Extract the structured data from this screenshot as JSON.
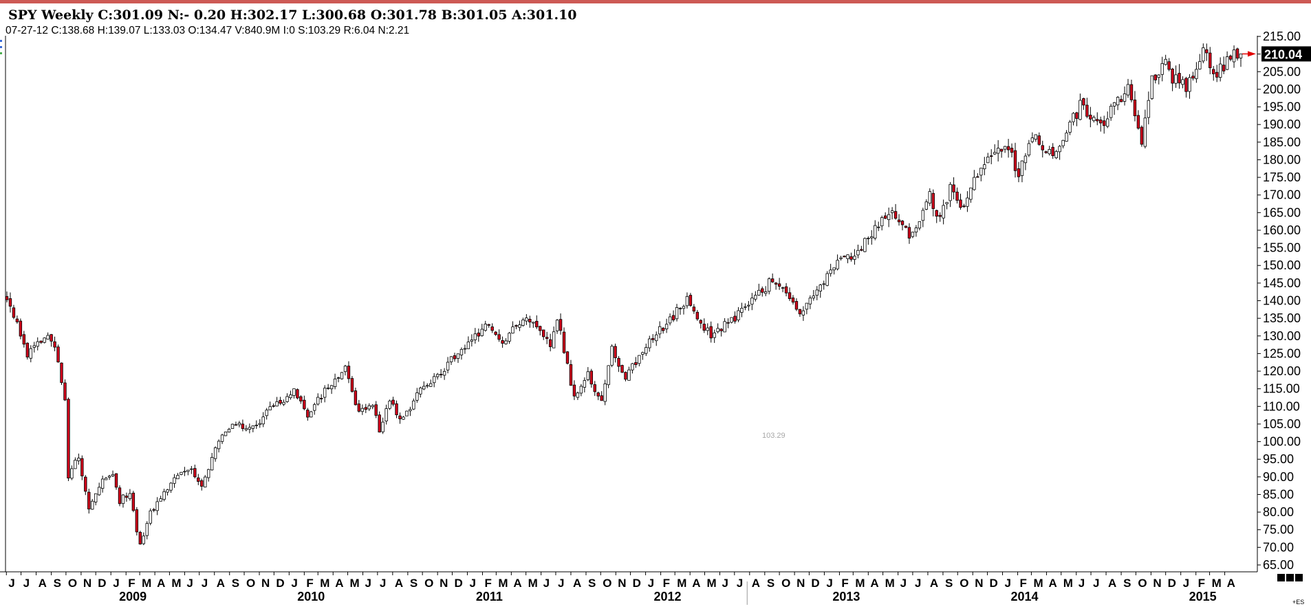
{
  "header": {
    "title": "SPY Weekly C:301.09 N:- 0.20 H:302.17 L:300.68 O:301.78 B:301.05 A:301.10",
    "subtitle": "07-27-12  C:138.68  H:139.07  L:133.03  O:134.47  V:840.9M  I:0  S:103.29  R:6.04  N:2.21"
  },
  "hover_value": "103.29",
  "corner_label": "+ES",
  "colors": {
    "down": "#d0021b",
    "up": "#ffffff",
    "outline": "#000000",
    "accent_bar": "#cd5a55",
    "last_marker": "#e00000"
  },
  "chart_data": {
    "type": "candlestick",
    "title": "SPY Weekly",
    "ylim": [
      65,
      215
    ],
    "yticks": [
      "215.00",
      "210.00",
      "205.00",
      "200.00",
      "195.00",
      "190.00",
      "185.00",
      "180.00",
      "175.00",
      "170.00",
      "165.00",
      "160.00",
      "155.00",
      "150.00",
      "145.00",
      "140.00",
      "135.00",
      "130.00",
      "125.00",
      "120.00",
      "115.00",
      "110.00",
      "105.00",
      "100.00",
      "95.00",
      "90.00",
      "85.00",
      "80.00",
      "75.00",
      "70.00",
      "65.00"
    ],
    "last_price": "210.04",
    "x_start": "2008-06-02",
    "x_end": "2015-05-04",
    "months": [
      {
        "label": "J",
        "date": "2008-06-01"
      },
      {
        "label": "J",
        "date": "2008-07-01"
      },
      {
        "label": "A",
        "date": "2008-08-01"
      },
      {
        "label": "S",
        "date": "2008-09-01"
      },
      {
        "label": "O",
        "date": "2008-10-01"
      },
      {
        "label": "N",
        "date": "2008-11-01"
      },
      {
        "label": "D",
        "date": "2008-12-01"
      },
      {
        "label": "J",
        "date": "2009-01-01"
      },
      {
        "label": "F",
        "date": "2009-02-01"
      },
      {
        "label": "M",
        "date": "2009-03-01"
      },
      {
        "label": "A",
        "date": "2009-04-01"
      },
      {
        "label": "M",
        "date": "2009-05-01"
      },
      {
        "label": "J",
        "date": "2009-06-01"
      },
      {
        "label": "J",
        "date": "2009-07-01"
      },
      {
        "label": "A",
        "date": "2009-08-01"
      },
      {
        "label": "S",
        "date": "2009-09-01"
      },
      {
        "label": "O",
        "date": "2009-10-01"
      },
      {
        "label": "N",
        "date": "2009-11-01"
      },
      {
        "label": "D",
        "date": "2009-12-01"
      },
      {
        "label": "J",
        "date": "2010-01-01"
      },
      {
        "label": "F",
        "date": "2010-02-01"
      },
      {
        "label": "M",
        "date": "2010-03-01"
      },
      {
        "label": "A",
        "date": "2010-04-01"
      },
      {
        "label": "M",
        "date": "2010-05-01"
      },
      {
        "label": "J",
        "date": "2010-06-01"
      },
      {
        "label": "J",
        "date": "2010-07-01"
      },
      {
        "label": "A",
        "date": "2010-08-01"
      },
      {
        "label": "S",
        "date": "2010-09-01"
      },
      {
        "label": "O",
        "date": "2010-10-01"
      },
      {
        "label": "N",
        "date": "2010-11-01"
      },
      {
        "label": "D",
        "date": "2010-12-01"
      },
      {
        "label": "J",
        "date": "2011-01-01"
      },
      {
        "label": "F",
        "date": "2011-02-01"
      },
      {
        "label": "M",
        "date": "2011-03-01"
      },
      {
        "label": "A",
        "date": "2011-04-01"
      },
      {
        "label": "M",
        "date": "2011-05-01"
      },
      {
        "label": "J",
        "date": "2011-06-01"
      },
      {
        "label": "J",
        "date": "2011-07-01"
      },
      {
        "label": "A",
        "date": "2011-08-01"
      },
      {
        "label": "S",
        "date": "2011-09-01"
      },
      {
        "label": "O",
        "date": "2011-10-01"
      },
      {
        "label": "N",
        "date": "2011-11-01"
      },
      {
        "label": "D",
        "date": "2011-12-01"
      },
      {
        "label": "J",
        "date": "2012-01-01"
      },
      {
        "label": "F",
        "date": "2012-02-01"
      },
      {
        "label": "M",
        "date": "2012-03-01"
      },
      {
        "label": "A",
        "date": "2012-04-01"
      },
      {
        "label": "M",
        "date": "2012-05-01"
      },
      {
        "label": "J",
        "date": "2012-06-01"
      },
      {
        "label": "J",
        "date": "2012-07-01"
      },
      {
        "label": "A",
        "date": "2012-08-01"
      },
      {
        "label": "S",
        "date": "2012-09-01"
      },
      {
        "label": "O",
        "date": "2012-10-01"
      },
      {
        "label": "N",
        "date": "2012-11-01"
      },
      {
        "label": "D",
        "date": "2012-12-01"
      },
      {
        "label": "J",
        "date": "2013-01-01"
      },
      {
        "label": "F",
        "date": "2013-02-01"
      },
      {
        "label": "M",
        "date": "2013-03-01"
      },
      {
        "label": "A",
        "date": "2013-04-01"
      },
      {
        "label": "M",
        "date": "2013-05-01"
      },
      {
        "label": "J",
        "date": "2013-06-01"
      },
      {
        "label": "J",
        "date": "2013-07-01"
      },
      {
        "label": "A",
        "date": "2013-08-01"
      },
      {
        "label": "S",
        "date": "2013-09-01"
      },
      {
        "label": "O",
        "date": "2013-10-01"
      },
      {
        "label": "N",
        "date": "2013-11-01"
      },
      {
        "label": "D",
        "date": "2013-12-01"
      },
      {
        "label": "J",
        "date": "2014-01-01"
      },
      {
        "label": "F",
        "date": "2014-02-01"
      },
      {
        "label": "M",
        "date": "2014-03-01"
      },
      {
        "label": "A",
        "date": "2014-04-01"
      },
      {
        "label": "M",
        "date": "2014-05-01"
      },
      {
        "label": "J",
        "date": "2014-06-01"
      },
      {
        "label": "J",
        "date": "2014-07-01"
      },
      {
        "label": "A",
        "date": "2014-08-01"
      },
      {
        "label": "S",
        "date": "2014-09-01"
      },
      {
        "label": "O",
        "date": "2014-10-01"
      },
      {
        "label": "N",
        "date": "2014-11-01"
      },
      {
        "label": "D",
        "date": "2014-12-01"
      },
      {
        "label": "J",
        "date": "2015-01-01"
      },
      {
        "label": "F",
        "date": "2015-02-01"
      },
      {
        "label": "M",
        "date": "2015-03-01"
      },
      {
        "label": "A",
        "date": "2015-04-01"
      }
    ],
    "years": [
      {
        "label": "2009",
        "date": "2009-02-15"
      },
      {
        "label": "2010",
        "date": "2010-02-15"
      },
      {
        "label": "2011",
        "date": "2011-02-15"
      },
      {
        "label": "2012",
        "date": "2012-02-15"
      },
      {
        "label": "2013",
        "date": "2013-02-15"
      },
      {
        "label": "2014",
        "date": "2014-02-15"
      },
      {
        "label": "2015",
        "date": "2015-02-15"
      }
    ],
    "period_divider": "2012-07-27",
    "close_path": [
      [
        "2008-06-02",
        141
      ],
      [
        "2008-07-14",
        125
      ],
      [
        "2008-08-18",
        130
      ],
      [
        "2008-09-08",
        127
      ],
      [
        "2008-09-29",
        112
      ],
      [
        "2008-10-06",
        90
      ],
      [
        "2008-10-27",
        96
      ],
      [
        "2008-11-17",
        80
      ],
      [
        "2008-12-08",
        88
      ],
      [
        "2009-01-05",
        91
      ],
      [
        "2009-01-19",
        83
      ],
      [
        "2009-02-09",
        86
      ],
      [
        "2009-03-02",
        70
      ],
      [
        "2009-03-23",
        80
      ],
      [
        "2009-04-20",
        86
      ],
      [
        "2009-05-18",
        90
      ],
      [
        "2009-06-15",
        92
      ],
      [
        "2009-07-06",
        88
      ],
      [
        "2009-08-10",
        100
      ],
      [
        "2009-09-14",
        105
      ],
      [
        "2009-10-26",
        104
      ],
      [
        "2009-11-16",
        110
      ],
      [
        "2009-12-28",
        112
      ],
      [
        "2010-01-11",
        114
      ],
      [
        "2010-02-08",
        107
      ],
      [
        "2010-03-01",
        112
      ],
      [
        "2010-04-26",
        121
      ],
      [
        "2010-05-24",
        108
      ],
      [
        "2010-06-21",
        110
      ],
      [
        "2010-07-05",
        103
      ],
      [
        "2010-07-26",
        111
      ],
      [
        "2010-08-23",
        106
      ],
      [
        "2010-09-20",
        114
      ],
      [
        "2010-10-25",
        118
      ],
      [
        "2010-12-13",
        125
      ],
      [
        "2011-02-14",
        133
      ],
      [
        "2011-03-14",
        128
      ],
      [
        "2011-04-25",
        135
      ],
      [
        "2011-05-23",
        132
      ],
      [
        "2011-06-20",
        128
      ],
      [
        "2011-07-04",
        135
      ],
      [
        "2011-08-08",
        112
      ],
      [
        "2011-09-05",
        119
      ],
      [
        "2011-10-03",
        111
      ],
      [
        "2011-10-24",
        126
      ],
      [
        "2011-11-21",
        118
      ],
      [
        "2011-12-26",
        126
      ],
      [
        "2012-03-26",
        140
      ],
      [
        "2012-05-14",
        130
      ],
      [
        "2012-06-11",
        133
      ],
      [
        "2012-07-27",
        138
      ],
      [
        "2012-09-17",
        146
      ],
      [
        "2012-11-12",
        137
      ],
      [
        "2012-12-17",
        143
      ],
      [
        "2013-01-21",
        150
      ],
      [
        "2013-03-18",
        155
      ],
      [
        "2013-05-20",
        166
      ],
      [
        "2013-06-24",
        158
      ],
      [
        "2013-08-05",
        170
      ],
      [
        "2013-08-26",
        163
      ],
      [
        "2013-09-16",
        172
      ],
      [
        "2013-10-07",
        166
      ],
      [
        "2013-11-25",
        180
      ],
      [
        "2014-01-13",
        184
      ],
      [
        "2014-02-03",
        175
      ],
      [
        "2014-03-03",
        187
      ],
      [
        "2014-04-14",
        182
      ],
      [
        "2014-06-09",
        195
      ],
      [
        "2014-07-28",
        191
      ],
      [
        "2014-09-15",
        201
      ],
      [
        "2014-10-13",
        186
      ],
      [
        "2014-11-03",
        203
      ],
      [
        "2014-12-01",
        208
      ],
      [
        "2014-12-15",
        203
      ],
      [
        "2015-01-12",
        201
      ],
      [
        "2015-02-16",
        210
      ],
      [
        "2015-03-16",
        205
      ],
      [
        "2015-04-20",
        210
      ],
      [
        "2015-05-04",
        210
      ]
    ]
  }
}
